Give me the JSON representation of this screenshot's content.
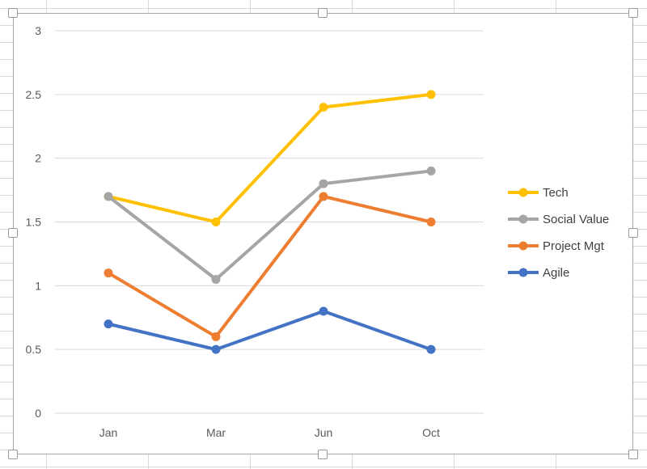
{
  "chart_data": {
    "type": "line",
    "title": "",
    "xlabel": "",
    "ylabel": "",
    "categories": [
      "Jan",
      "Mar",
      "Jun",
      "Oct"
    ],
    "ylim": [
      0,
      3
    ],
    "yticks": [
      "0",
      "0.5",
      "1",
      "1.5",
      "2",
      "2.5",
      "3"
    ],
    "grid": true,
    "legend_position": "right",
    "series": [
      {
        "name": "Tech",
        "color": "#FFC000",
        "values": [
          1.7,
          1.5,
          2.4,
          2.5
        ]
      },
      {
        "name": "Social Value",
        "color": "#A5A5A5",
        "values": [
          1.7,
          1.05,
          1.8,
          1.9
        ]
      },
      {
        "name": "Project Mgt",
        "color": "#ED7D31",
        "values": [
          1.1,
          0.6,
          1.7,
          1.5
        ]
      },
      {
        "name": "Agile",
        "color": "#4472C4",
        "values": [
          0.7,
          0.5,
          0.8,
          0.5
        ]
      }
    ]
  }
}
